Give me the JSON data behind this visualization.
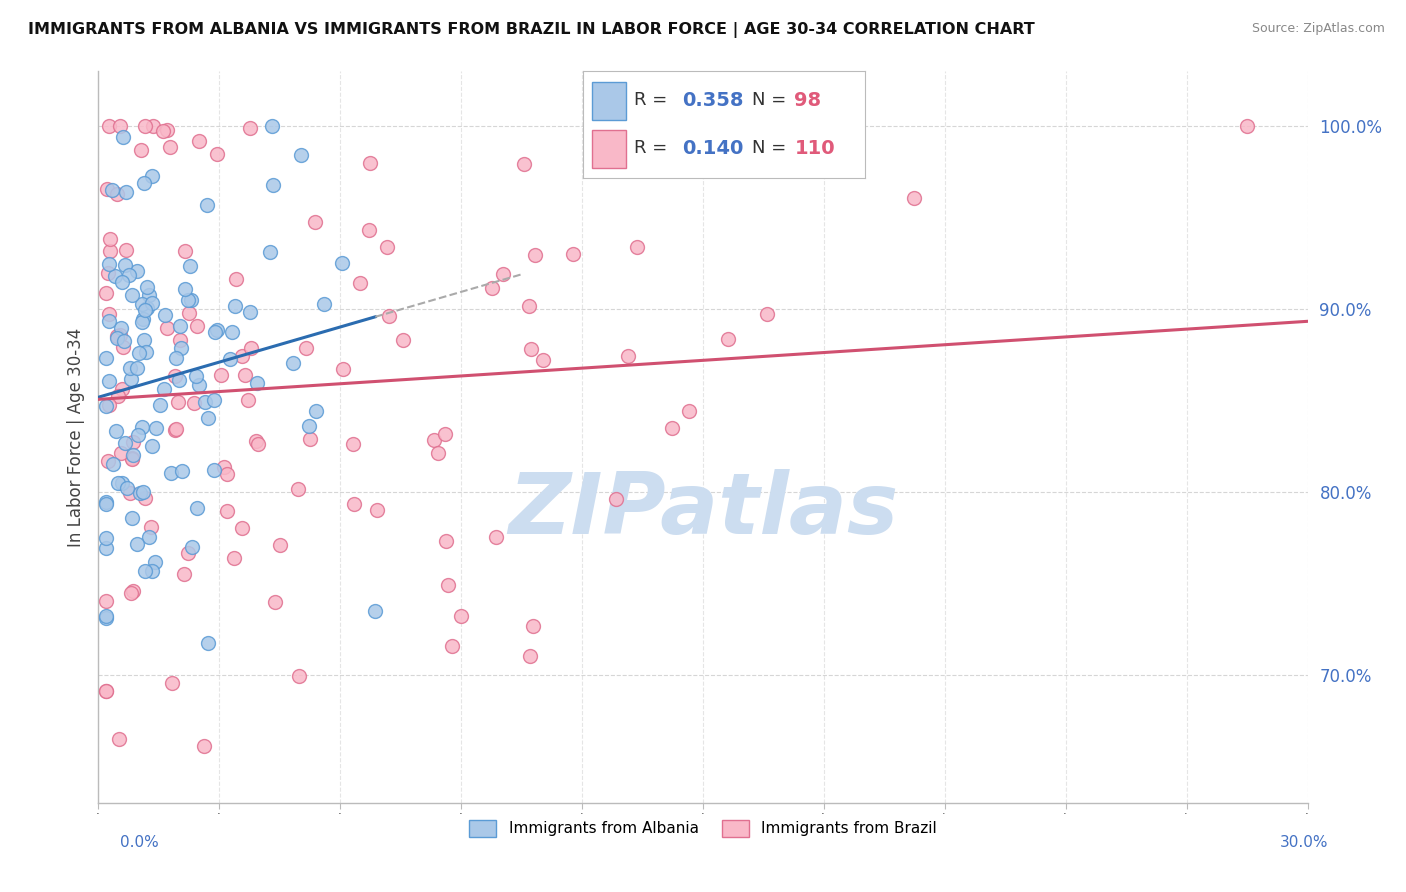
{
  "title": "IMMIGRANTS FROM ALBANIA VS IMMIGRANTS FROM BRAZIL IN LABOR FORCE | AGE 30-34 CORRELATION CHART",
  "source": "Source: ZipAtlas.com",
  "ylabel": "In Labor Force | Age 30-34",
  "xmin": 0.0,
  "xmax": 0.3,
  "ymin": 0.63,
  "ymax": 1.03,
  "albania_R": 0.358,
  "albania_N": 98,
  "brazil_R": 0.14,
  "brazil_N": 110,
  "albania_color": "#aac8e8",
  "albania_edge_color": "#5b9bd5",
  "albania_line_color": "#2b6cb0",
  "brazil_color": "#f9b8c8",
  "brazil_edge_color": "#e07090",
  "brazil_line_color": "#d05070",
  "watermark_color": "#ccddf0",
  "grid_color": "#cccccc",
  "title_fontsize": 11.5,
  "source_fontsize": 9,
  "marker_size": 100,
  "legend_R_color": "#4472c4",
  "legend_N_color": "#e05a7a"
}
